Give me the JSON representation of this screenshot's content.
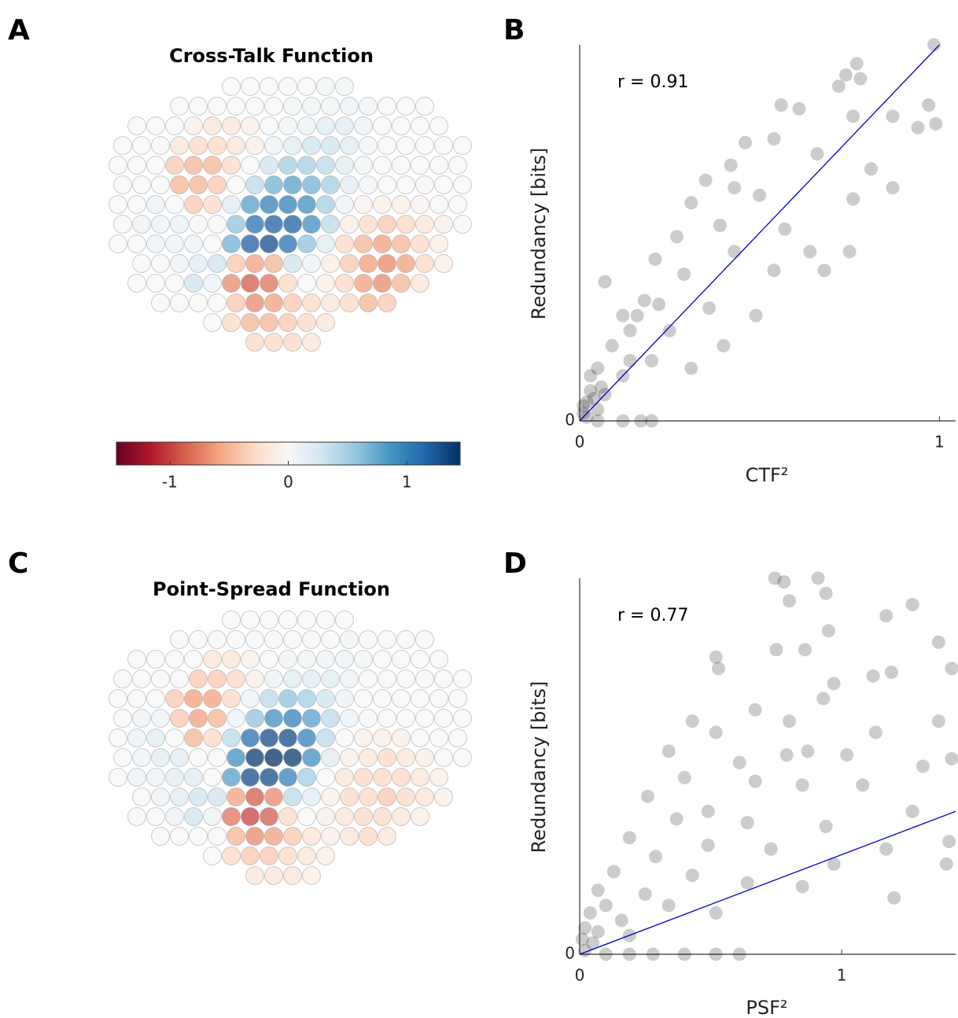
{
  "chart_data": [
    {
      "type": "heatmap",
      "panel_label": "A",
      "title": "Cross-Talk Function",
      "colormap": [
        "#67001f",
        "#b2182b",
        "#d6604d",
        "#f4a582",
        "#fddbc7",
        "#f7f7f7",
        "#d1e5f0",
        "#92c5de",
        "#4393c3",
        "#2166ac",
        "#053061"
      ],
      "clim": [
        -1.45,
        1.45
      ],
      "colorbar_ticks": [
        -1,
        0,
        1
      ],
      "grid": [
        [
          null,
          null,
          null,
          null,
          null,
          null,
          0,
          0,
          0,
          0,
          0,
          0.05,
          0.05,
          null,
          null,
          null,
          null,
          null,
          null
        ],
        [
          null,
          null,
          null,
          0,
          0,
          0,
          0,
          0,
          0,
          0.05,
          0.05,
          0.05,
          0.1,
          0.05,
          0,
          0,
          0,
          null,
          null
        ],
        [
          null,
          0,
          0,
          0,
          -0.1,
          -0.2,
          -0.2,
          -0.1,
          0,
          0.05,
          0.1,
          0.2,
          0.2,
          0.1,
          0,
          0,
          0,
          0,
          null
        ],
        [
          0,
          0,
          0,
          -0.2,
          -0.3,
          -0.3,
          -0.2,
          -0.1,
          0.1,
          0.2,
          0.3,
          0.3,
          0.2,
          0.05,
          0,
          0,
          0,
          0,
          0
        ],
        [
          0,
          0,
          0,
          -0.4,
          -0.5,
          -0.5,
          -0.3,
          0,
          0.3,
          0.5,
          0.5,
          0.4,
          0.2,
          0.05,
          0,
          0,
          0,
          0,
          0
        ],
        [
          0,
          0,
          0,
          -0.5,
          -0.5,
          -0.4,
          0,
          0.4,
          0.7,
          0.8,
          0.7,
          0.5,
          0.2,
          0.05,
          0,
          0,
          0,
          0,
          0
        ],
        [
          0,
          0,
          0.1,
          0,
          -0.4,
          -0.3,
          0.2,
          0.8,
          1.0,
          1.0,
          0.9,
          0.5,
          0.1,
          -0.05,
          -0.1,
          -0.1,
          -0.05,
          0,
          0
        ],
        [
          0,
          0.1,
          0.1,
          0.1,
          0,
          0,
          0.6,
          1.1,
          1.2,
          1.2,
          0.9,
          0.4,
          -0.1,
          -0.3,
          -0.4,
          -0.3,
          -0.2,
          -0.1,
          0
        ],
        [
          0,
          0,
          0.1,
          0.1,
          0.1,
          0,
          0.7,
          1.2,
          1.3,
          1.1,
          0.6,
          0.2,
          -0.3,
          -0.5,
          -0.6,
          -0.5,
          -0.3,
          -0.1,
          null
        ],
        [
          null,
          0,
          0,
          0.1,
          0.2,
          0.3,
          -0.4,
          -0.6,
          -0.5,
          0.3,
          0.1,
          -0.1,
          -0.4,
          -0.6,
          -0.7,
          -0.6,
          -0.3,
          -0.1,
          null
        ],
        [
          null,
          0,
          0,
          0,
          0.3,
          0.1,
          -0.7,
          -0.9,
          -0.8,
          -0.3,
          0,
          -0.1,
          -0.3,
          -0.6,
          -0.7,
          -0.5,
          -0.2,
          null,
          null
        ],
        [
          null,
          null,
          0,
          0,
          0,
          0,
          -0.4,
          -0.7,
          -0.6,
          -0.4,
          -0.3,
          -0.2,
          -0.3,
          -0.5,
          -0.4,
          null,
          null,
          null,
          null
        ],
        [
          null,
          null,
          null,
          null,
          null,
          0,
          -0.3,
          -0.5,
          -0.5,
          -0.4,
          -0.3,
          -0.2,
          null,
          null,
          null,
          null,
          null,
          null,
          null
        ],
        [
          null,
          null,
          null,
          null,
          null,
          null,
          null,
          -0.3,
          -0.3,
          -0.3,
          -0.2,
          null,
          null,
          null,
          null,
          null,
          null,
          null,
          null
        ]
      ]
    },
    {
      "type": "scatter",
      "panel_label": "B",
      "annotation": "r = 0.91",
      "x_label": "CTF²",
      "y_label": "Redundancy [bits]",
      "xlim": [
        0,
        1.045
      ],
      "ylim": [
        0,
        1
      ],
      "xticks": [
        0,
        1
      ],
      "yticks": [
        0
      ],
      "color": "#000000",
      "x": [
        0.985,
        0.77,
        0.78,
        0.72,
        0.74,
        0.97,
        0.94,
        0.99,
        0.87,
        0.76,
        0.61,
        0.56,
        0.46,
        0.54,
        0.66,
        0.81,
        0.87,
        0.76,
        0.42,
        0.35,
        0.43,
        0.5,
        0.31,
        0.27,
        0.39,
        0.57,
        0.64,
        0.75,
        0.43,
        0.54,
        0.68,
        0.21,
        0.29,
        0.07,
        0.18,
        0.36,
        0.49,
        0.14,
        0.25,
        0.4,
        0.09,
        0.2,
        0.31,
        0.05,
        0.12,
        0.03,
        0.07,
        0.02,
        0.05,
        0.01,
        0.05,
        0.12,
        0.17,
        0.2,
        0.02,
        0.01,
        0.04,
        0.06,
        0.14,
        0.16,
        0.22,
        0.12,
        0.03
      ],
      "values": [
        1.0,
        0.95,
        0.91,
        0.89,
        0.92,
        0.84,
        0.78,
        0.79,
        0.81,
        0.81,
        0.83,
        0.84,
        0.74,
        0.75,
        0.71,
        0.67,
        0.62,
        0.59,
        0.68,
        0.64,
        0.62,
        0.6,
        0.58,
        0.49,
        0.52,
        0.51,
        0.45,
        0.45,
        0.45,
        0.4,
        0.4,
        0.43,
        0.39,
        0.37,
        0.32,
        0.3,
        0.28,
        0.24,
        0.24,
        0.2,
        0.2,
        0.16,
        0.14,
        0.14,
        0.12,
        0.08,
        0.07,
        0.05,
        0.03,
        0.02,
        0,
        0,
        0,
        0,
        0.01,
        0.04,
        0.06,
        0.09,
        0.16,
        0.28,
        0.31,
        0.28,
        0.12
      ],
      "fit": {
        "color": "#0000cc",
        "x": [
          0,
          1.0
        ],
        "values": [
          0,
          1.0
        ]
      }
    },
    {
      "type": "heatmap",
      "panel_label": "C",
      "title": "Point-Spread Function",
      "colormap": [
        "#67001f",
        "#b2182b",
        "#d6604d",
        "#f4a582",
        "#fddbc7",
        "#f7f7f7",
        "#d1e5f0",
        "#92c5de",
        "#4393c3",
        "#2166ac",
        "#053061"
      ],
      "clim": [
        -1.45,
        1.45
      ],
      "grid": [
        [
          null,
          null,
          null,
          null,
          null,
          null,
          0,
          0,
          0,
          0,
          0,
          0,
          0,
          null,
          null,
          null,
          null,
          null,
          null
        ],
        [
          null,
          null,
          null,
          0,
          0,
          0,
          0,
          0,
          0,
          0,
          0,
          0,
          0.05,
          0,
          0,
          0,
          0,
          null,
          null
        ],
        [
          null,
          0,
          0,
          0,
          0,
          -0.2,
          -0.2,
          -0.1,
          0,
          0.05,
          0.05,
          0.1,
          0.1,
          0.05,
          0,
          0,
          0,
          0,
          null
        ],
        [
          0,
          0,
          0,
          0,
          -0.4,
          -0.4,
          -0.3,
          -0.1,
          0.1,
          0.2,
          0.2,
          0.2,
          0.1,
          0,
          0,
          0,
          0,
          0,
          0
        ],
        [
          0,
          0,
          0,
          -0.4,
          -0.6,
          -0.6,
          -0.3,
          0.1,
          0.4,
          0.6,
          0.5,
          0.3,
          0.1,
          0,
          0,
          0,
          0,
          0,
          0
        ],
        [
          0,
          0.1,
          0.1,
          -0.4,
          -0.6,
          -0.5,
          0.1,
          0.6,
          0.9,
          1.0,
          0.8,
          0.4,
          0.1,
          0,
          0,
          0,
          0,
          0,
          0
        ],
        [
          0,
          0.1,
          0.2,
          0,
          -0.5,
          -0.3,
          0.4,
          1.1,
          1.3,
          1.3,
          1.0,
          0.4,
          0,
          -0.1,
          -0.1,
          -0.1,
          0,
          0,
          0
        ],
        [
          0,
          0.1,
          0.2,
          0.2,
          0,
          0,
          0.9,
          1.4,
          1.45,
          1.4,
          0.9,
          0.2,
          -0.1,
          -0.2,
          -0.3,
          -0.2,
          -0.1,
          0,
          0
        ],
        [
          0,
          0.1,
          0.1,
          0.2,
          0.2,
          0,
          0.8,
          1.3,
          1.3,
          1.0,
          0.5,
          0,
          -0.2,
          -0.3,
          -0.3,
          -0.3,
          -0.2,
          -0.1,
          null
        ],
        [
          null,
          0,
          0.1,
          0.2,
          0.3,
          0.3,
          -0.6,
          -0.9,
          -0.7,
          0.4,
          0.2,
          -0.1,
          -0.3,
          -0.3,
          -0.4,
          -0.3,
          -0.2,
          -0.1,
          null
        ],
        [
          null,
          0,
          0,
          0.1,
          0.3,
          0.1,
          -0.8,
          -1.0,
          -0.9,
          -0.3,
          0,
          -0.1,
          -0.2,
          -0.3,
          -0.3,
          -0.2,
          -0.1,
          null,
          null
        ],
        [
          null,
          null,
          0,
          0,
          0,
          0,
          -0.5,
          -0.7,
          -0.6,
          -0.4,
          -0.2,
          -0.1,
          -0.2,
          -0.3,
          -0.2,
          null,
          null,
          null,
          null
        ],
        [
          null,
          null,
          null,
          null,
          null,
          0,
          -0.3,
          -0.4,
          -0.4,
          -0.3,
          -0.2,
          -0.1,
          null,
          null,
          null,
          null,
          null,
          null,
          null
        ],
        [
          null,
          null,
          null,
          null,
          null,
          null,
          null,
          -0.2,
          -0.2,
          -0.2,
          -0.1,
          null,
          null,
          null,
          null,
          null,
          null,
          null,
          null
        ]
      ]
    },
    {
      "type": "scatter",
      "panel_label": "D",
      "annotation": "r = 0.77",
      "x_label": "PSF²",
      "y_label": "Redundancy [bits]",
      "xlim": [
        0,
        1.435
      ],
      "ylim": [
        0,
        1
      ],
      "xticks": [
        0,
        1
      ],
      "yticks": [
        0
      ],
      "color": "#000000",
      "x": [
        0.745,
        0.78,
        0.91,
        0.94,
        0.8,
        1.27,
        1.17,
        0.95,
        0.75,
        0.86,
        0.52,
        1.37,
        1.42,
        1.19,
        1.12,
        0.53,
        0.97,
        0.93,
        0.67,
        0.43,
        0.8,
        1.37,
        0.52,
        1.13,
        0.34,
        0.87,
        0.79,
        1.02,
        1.42,
        0.61,
        1.31,
        0.4,
        0.67,
        0.85,
        1.08,
        0.26,
        0.49,
        1.27,
        0.37,
        0.64,
        0.94,
        0.19,
        1.41,
        0.49,
        0.73,
        1.17,
        0.29,
        1.4,
        0.97,
        0.13,
        0.43,
        0.64,
        0.85,
        1.2,
        0.25,
        0.07,
        0.1,
        0.34,
        0.52,
        0.04,
        0.16,
        0.02,
        0.07,
        0.19,
        0.01,
        0.05,
        0.02,
        0.1,
        0.19,
        0.28,
        0.4,
        0.52,
        0.61
      ],
      "values": [
        1.0,
        0.99,
        1.0,
        0.96,
        0.94,
        0.93,
        0.9,
        0.86,
        0.81,
        0.81,
        0.79,
        0.83,
        0.76,
        0.75,
        0.74,
        0.76,
        0.72,
        0.68,
        0.65,
        0.62,
        0.62,
        0.62,
        0.59,
        0.59,
        0.54,
        0.54,
        0.53,
        0.53,
        0.52,
        0.51,
        0.5,
        0.47,
        0.46,
        0.45,
        0.45,
        0.42,
        0.38,
        0.38,
        0.36,
        0.35,
        0.34,
        0.31,
        0.3,
        0.29,
        0.28,
        0.28,
        0.26,
        0.24,
        0.24,
        0.22,
        0.21,
        0.19,
        0.18,
        0.15,
        0.16,
        0.17,
        0.13,
        0.13,
        0.11,
        0.11,
        0.09,
        0.07,
        0.06,
        0.05,
        0.04,
        0.03,
        0.01,
        0,
        0,
        0,
        0,
        0,
        0
      ],
      "fit": {
        "color": "#0000cc",
        "x": [
          0,
          1.435
        ],
        "values": [
          0,
          0.38
        ]
      }
    }
  ]
}
